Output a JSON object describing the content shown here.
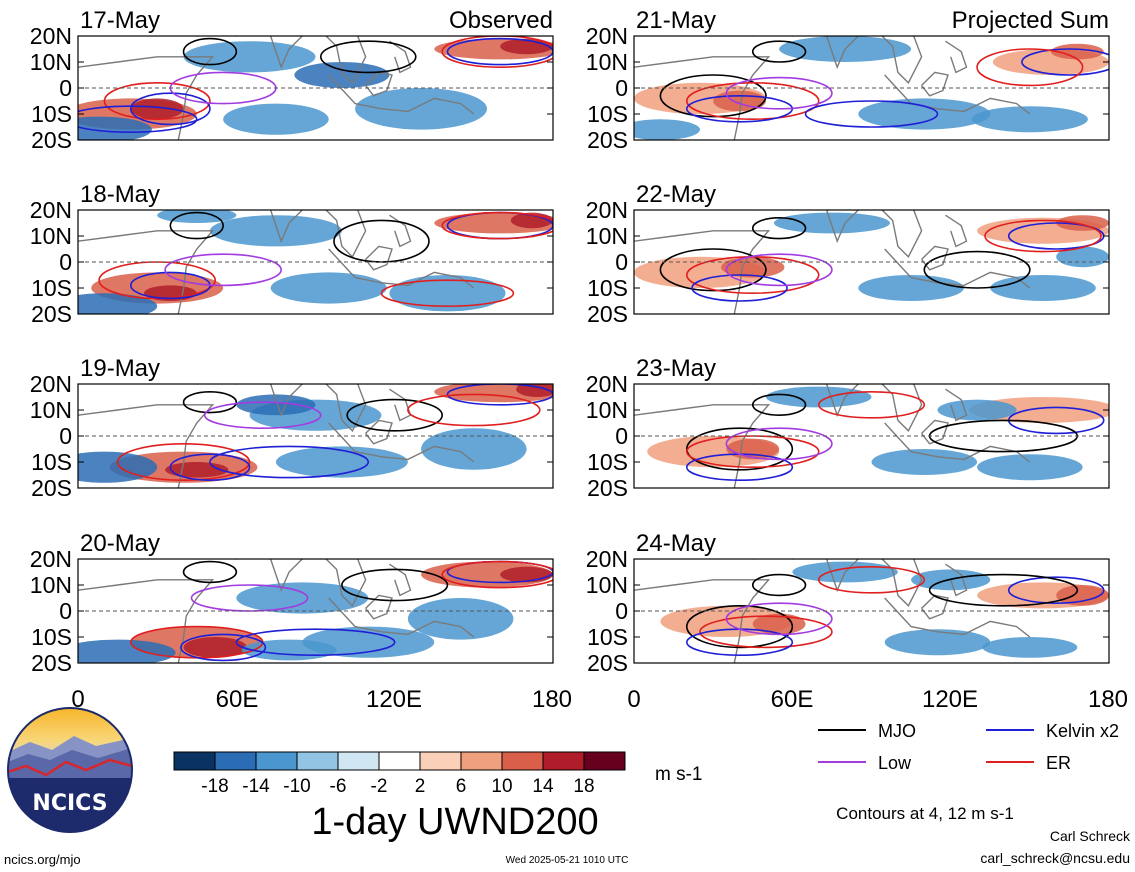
{
  "chart_data": {
    "type": "heatmap",
    "title": "1-day UWND200",
    "units": "m s-1",
    "x_tick_labels": [
      "0",
      "60E",
      "120E",
      "180"
    ],
    "y_tick_labels": [
      "20N",
      "10N",
      "0",
      "10S",
      "20S"
    ],
    "xlim": [
      0,
      180
    ],
    "ylim": [
      -20,
      20
    ],
    "columns": [
      {
        "label": "Observed",
        "panels": [
          "17-May",
          "18-May",
          "19-May",
          "20-May"
        ]
      },
      {
        "label": "Projected Sum",
        "panels": [
          "21-May",
          "22-May",
          "23-May",
          "24-May"
        ]
      }
    ],
    "colorbar": {
      "tick_labels": [
        "-18",
        "-14",
        "-10",
        "-6",
        "-2",
        "2",
        "6",
        "10",
        "14",
        "18"
      ],
      "colors": [
        "#0a3263",
        "#2a6db5",
        "#4a96cf",
        "#92c5e3",
        "#d0e6f2",
        "#ffffff",
        "#fbd0b8",
        "#f1a07f",
        "#d95f4a",
        "#b01d2a",
        "#67001f"
      ]
    },
    "legend": {
      "position": "bottom-right",
      "entries": [
        {
          "label": "MJO",
          "color": "#000000"
        },
        {
          "label": "Kelvin x2",
          "color": "#1f1fd6"
        },
        {
          "label": "Low",
          "color": "#a23ce0"
        },
        {
          "label": "ER",
          "color": "#e01f1f"
        }
      ]
    },
    "contour_note": "Contours at 4, 12 m s-1"
  },
  "footer": {
    "left": "ncics.org/mjo",
    "center": "Wed 2025-05-21 1010 UTC",
    "author": "Carl Schreck",
    "email": "carl_schreck@ncsu.edu"
  },
  "logo": {
    "text": "NCICS"
  }
}
